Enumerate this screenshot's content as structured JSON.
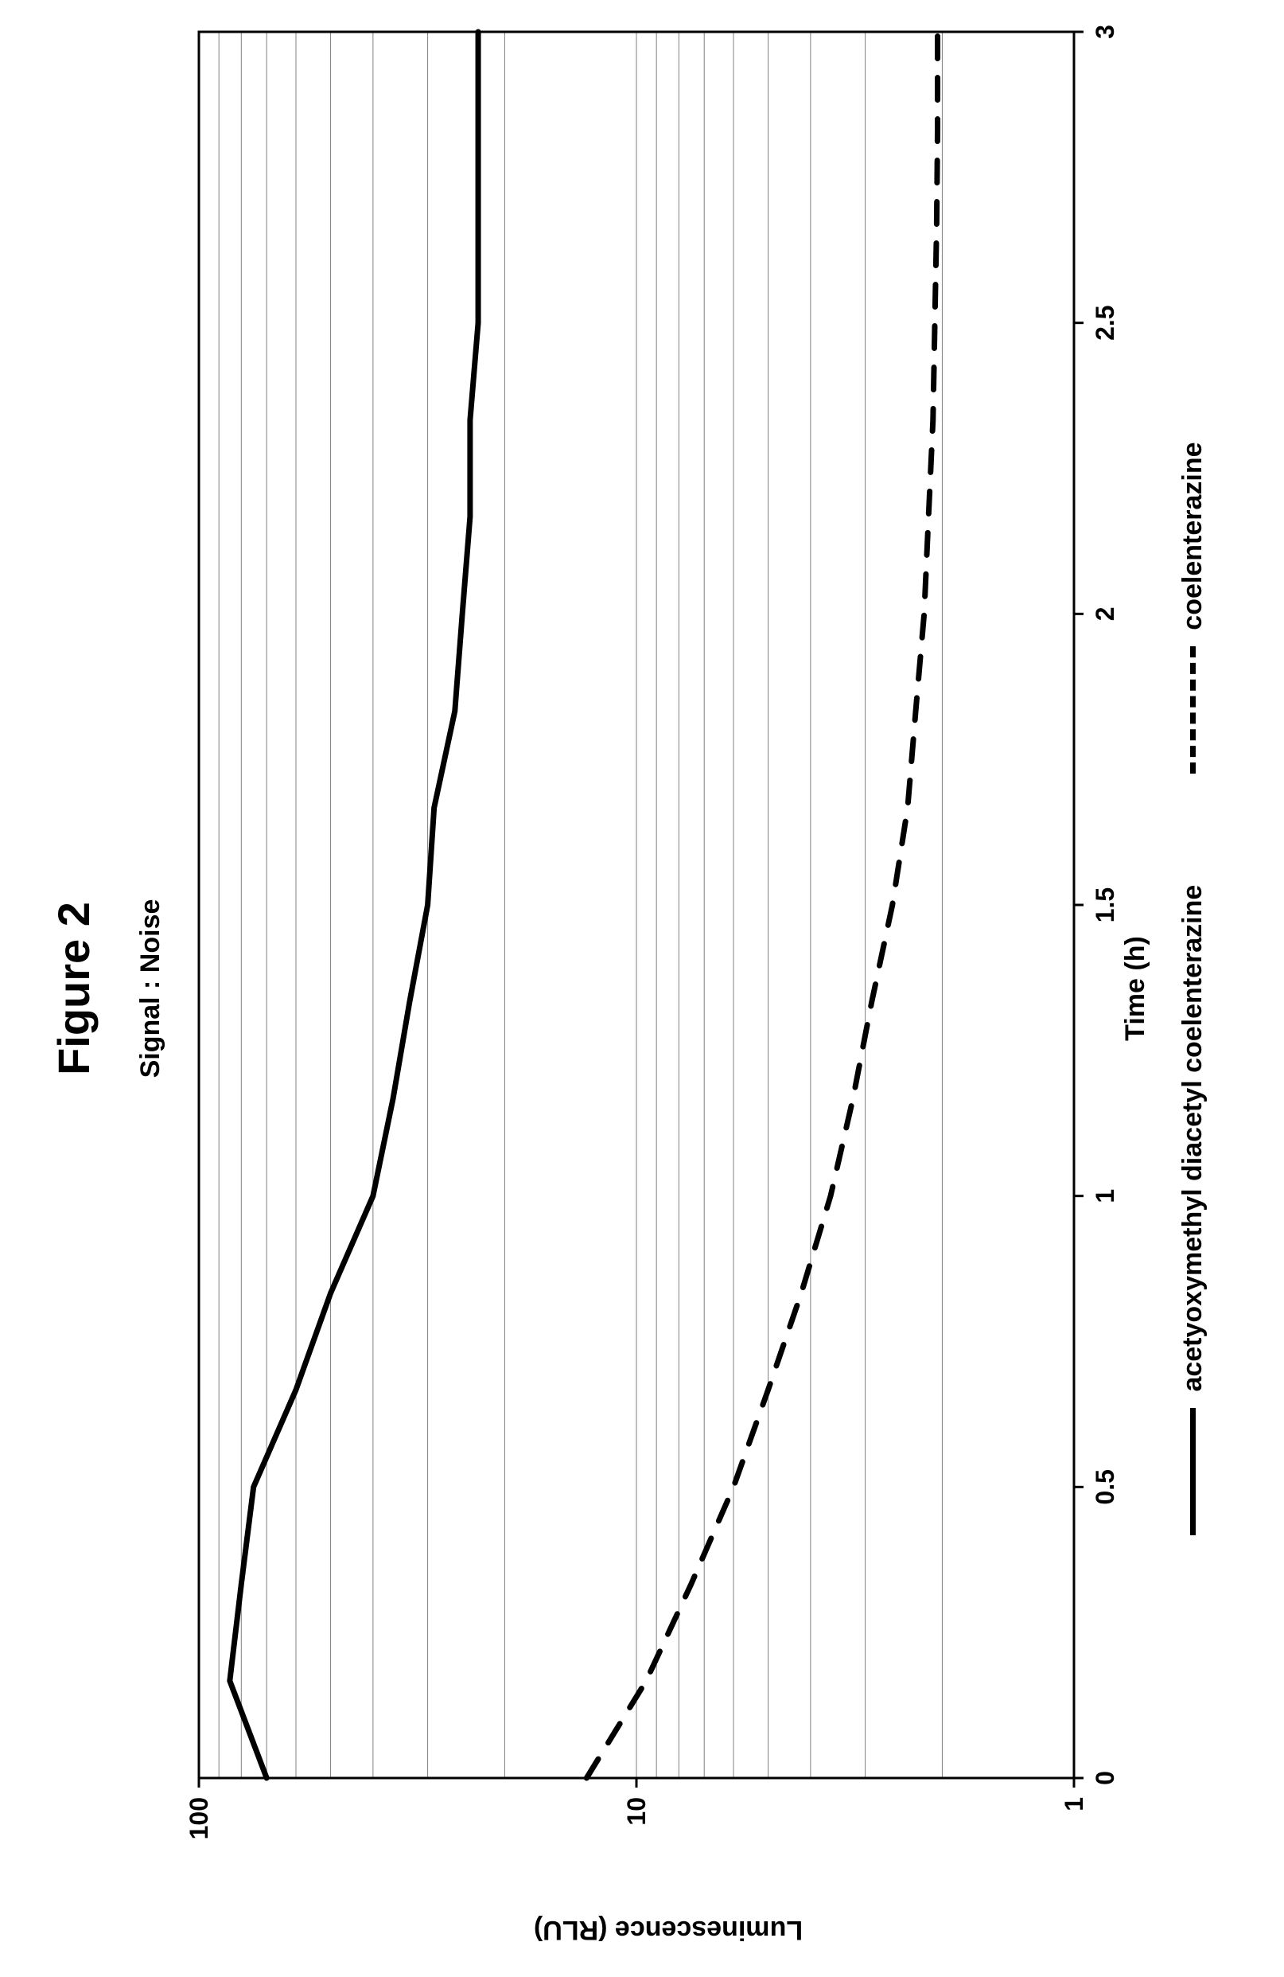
{
  "figure_title": "Figure 2",
  "chart": {
    "type": "line",
    "title": "Signal : Noise",
    "y_label": "Luminescence (RLU)",
    "x_label": "Time (h)",
    "background_color": "#ffffff",
    "plot_border_color": "#000000",
    "grid_color": "#808080",
    "grid_width": 1,
    "x": {
      "min": 0,
      "max": 3,
      "ticks": [
        0,
        0.5,
        1,
        1.5,
        2,
        2.5,
        3
      ],
      "tick_fontsize": 32,
      "tick_fontweight": 700
    },
    "y": {
      "scale": "log",
      "min": 1,
      "max": 100,
      "ticks": [
        1,
        10,
        100
      ],
      "tick_fontsize": 32,
      "tick_fontweight": 700
    },
    "y_log_gridlines": [
      1,
      2,
      3,
      4,
      5,
      6,
      7,
      8,
      9,
      10,
      20,
      30,
      40,
      50,
      60,
      70,
      80,
      90,
      100
    ],
    "series": [
      {
        "name": "acetyoxymethyl diacetyl coelenterazine",
        "dash": "solid",
        "color": "#000000",
        "line_width": 7,
        "x": [
          0,
          0.167,
          0.333,
          0.5,
          0.667,
          0.833,
          1.0,
          1.167,
          1.333,
          1.5,
          1.667,
          1.833,
          2.0,
          2.167,
          2.333,
          2.5,
          2.667,
          2.833,
          3.0
        ],
        "y": [
          70,
          85,
          80,
          75,
          60,
          50,
          40,
          36,
          33,
          30,
          29,
          26,
          25,
          24,
          24,
          23,
          23,
          23,
          23
        ]
      },
      {
        "name": "coelenterazine",
        "dash": "dashed",
        "color": "#000000",
        "line_width": 7,
        "x": [
          0,
          0.167,
          0.333,
          0.5,
          0.667,
          0.833,
          1.0,
          1.167,
          1.333,
          1.5,
          1.667,
          1.833,
          2.0,
          2.167,
          2.333,
          2.5,
          2.667,
          2.833,
          3.0
        ],
        "y": [
          13,
          9.5,
          7.5,
          6.0,
          5.0,
          4.2,
          3.6,
          3.2,
          2.9,
          2.6,
          2.4,
          2.3,
          2.2,
          2.15,
          2.1,
          2.08,
          2.06,
          2.05,
          2.05
        ]
      }
    ],
    "legend": {
      "fontweight": 700,
      "fontsize": 34
    },
    "label_fontweight": 700,
    "label_fontsize": 34,
    "figure_title_fontsize": 56,
    "figure_title_fontweight": 700
  }
}
